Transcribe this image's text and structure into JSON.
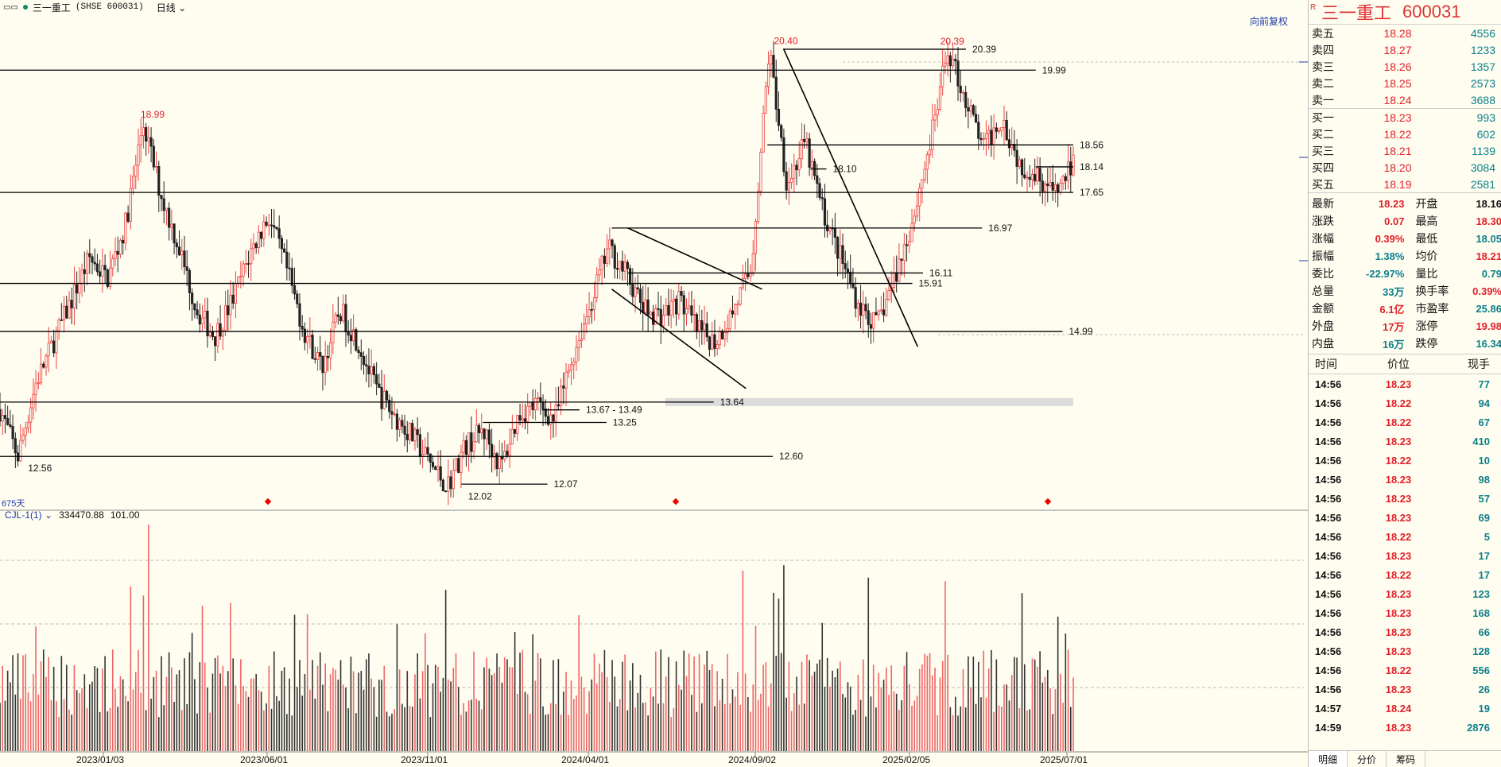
{
  "header": {
    "stock_name": "三一重工",
    "stock_code": "(SHSE 600031)",
    "period": "日线",
    "restore": "向前复权"
  },
  "panel": {
    "r_mark": "R",
    "name": "三一重工",
    "code": "600031",
    "asks": [
      {
        "label": "卖五",
        "price": "18.28",
        "vol": "4556"
      },
      {
        "label": "卖四",
        "price": "18.27",
        "vol": "1233"
      },
      {
        "label": "卖三",
        "price": "18.26",
        "vol": "1357"
      },
      {
        "label": "卖二",
        "price": "18.25",
        "vol": "2573"
      },
      {
        "label": "卖一",
        "price": "18.24",
        "vol": "3688"
      }
    ],
    "bids": [
      {
        "label": "买一",
        "price": "18.23",
        "vol": "993"
      },
      {
        "label": "买二",
        "price": "18.22",
        "vol": "602"
      },
      {
        "label": "买三",
        "price": "18.21",
        "vol": "1139"
      },
      {
        "label": "买四",
        "price": "18.20",
        "vol": "3084"
      },
      {
        "label": "买五",
        "price": "18.19",
        "vol": "2581"
      }
    ],
    "stats": [
      {
        "k": "最新",
        "v": "18.23",
        "vc": "red",
        "k2": "开盘",
        "v2": "18.16",
        "v2c": "blk"
      },
      {
        "k": "涨跌",
        "v": "0.07",
        "vc": "red",
        "k2": "最高",
        "v2": "18.30",
        "v2c": "red"
      },
      {
        "k": "涨幅",
        "v": "0.39%",
        "vc": "red",
        "k2": "最低",
        "v2": "18.05",
        "v2c": "green"
      },
      {
        "k": "振幅",
        "v": "1.38%",
        "vc": "green",
        "k2": "均价",
        "v2": "18.21",
        "v2c": "red"
      },
      {
        "k": "委比",
        "v": "-22.97%",
        "vc": "green",
        "k2": "量比",
        "v2": "0.79",
        "v2c": "green"
      },
      {
        "k": "总量",
        "v": "33万",
        "vc": "green",
        "k2": "换手率",
        "v2": "0.39%",
        "v2c": "red"
      },
      {
        "k": "金额",
        "v": "6.1亿",
        "vc": "red",
        "k2": "市盈率",
        "v2": "25.86",
        "v2c": "green"
      },
      {
        "k": "外盘",
        "v": "17万",
        "vc": "red",
        "k2": "涨停",
        "v2": "19.98",
        "v2c": "red"
      },
      {
        "k": "内盘",
        "v": "16万",
        "vc": "green",
        "k2": "跌停",
        "v2": "16.34",
        "v2c": "green"
      }
    ],
    "tick_header": {
      "time": "时间",
      "price": "价位",
      "vol": "现手"
    },
    "ticks": [
      {
        "t": "14:56",
        "p": "18.23",
        "v": "77",
        "pc": "red"
      },
      {
        "t": "14:56",
        "p": "18.22",
        "v": "94",
        "pc": "red"
      },
      {
        "t": "14:56",
        "p": "18.22",
        "v": "67",
        "pc": "red"
      },
      {
        "t": "14:56",
        "p": "18.23",
        "v": "410",
        "pc": "red"
      },
      {
        "t": "14:56",
        "p": "18.22",
        "v": "10",
        "pc": "red"
      },
      {
        "t": "14:56",
        "p": "18.23",
        "v": "98",
        "pc": "red"
      },
      {
        "t": "14:56",
        "p": "18.23",
        "v": "57",
        "pc": "red"
      },
      {
        "t": "14:56",
        "p": "18.23",
        "v": "69",
        "pc": "red"
      },
      {
        "t": "14:56",
        "p": "18.22",
        "v": "5",
        "pc": "red"
      },
      {
        "t": "14:56",
        "p": "18.23",
        "v": "17",
        "pc": "red"
      },
      {
        "t": "14:56",
        "p": "18.22",
        "v": "17",
        "pc": "red"
      },
      {
        "t": "14:56",
        "p": "18.23",
        "v": "123",
        "pc": "red"
      },
      {
        "t": "14:56",
        "p": "18.23",
        "v": "168",
        "pc": "red"
      },
      {
        "t": "14:56",
        "p": "18.23",
        "v": "66",
        "pc": "red"
      },
      {
        "t": "14:56",
        "p": "18.23",
        "v": "128",
        "pc": "red"
      },
      {
        "t": "14:56",
        "p": "18.22",
        "v": "556",
        "pc": "red"
      },
      {
        "t": "14:56",
        "p": "18.23",
        "v": "26",
        "pc": "red"
      },
      {
        "t": "14:57",
        "p": "18.24",
        "v": "19",
        "pc": "red"
      },
      {
        "t": "14:59",
        "p": "18.23",
        "v": "2876",
        "pc": "red"
      }
    ],
    "tabs": [
      "明细",
      "分价",
      "筹码"
    ]
  },
  "indicator": {
    "name": "CJL-1(1)",
    "v1": "334470.88",
    "v2": "101.00"
  },
  "days_label": "675天",
  "chart_data": [
    {
      "type": "candlestick",
      "x_dates": [
        "2023/01/03",
        "2023/06/01",
        "2023/11/01",
        "2024/04/01",
        "2024/09/02",
        "2025/02/05",
        "2025/07/01"
      ],
      "ylim": [
        11.6,
        20.8
      ],
      "key_points": [
        {
          "label": "18.99",
          "price": 18.99,
          "date_frac": 0.14
        },
        {
          "label": "12.56",
          "price": 12.56,
          "date_frac": 0.035
        },
        {
          "label": "12.02",
          "price": 12.02,
          "date_frac": 0.445
        },
        {
          "label": "20.40",
          "price": 20.4,
          "date_frac": 0.73
        },
        {
          "label": "20.39",
          "price": 20.39,
          "date_frac": 0.885
        }
      ],
      "price_path": [
        13.5,
        12.6,
        14.0,
        14.8,
        15.6,
        16.4,
        16.0,
        17.0,
        18.99,
        17.6,
        16.6,
        15.4,
        14.9,
        15.6,
        16.5,
        17.2,
        16.2,
        15.0,
        14.3,
        15.4,
        14.8,
        13.9,
        13.4,
        13.0,
        12.5,
        12.02,
        12.8,
        13.1,
        12.4,
        13.4,
        13.6,
        13.3,
        14.5,
        15.5,
        16.6,
        16.1,
        15.4,
        15.3,
        15.6,
        15.0,
        14.8,
        15.4,
        16.2,
        20.4,
        17.8,
        18.6,
        17.3,
        16.4,
        15.5,
        15.1,
        16.0,
        17.1,
        18.6,
        20.39,
        19.4,
        18.5,
        19.1,
        18.2,
        18.0,
        17.6,
        18.23
      ],
      "horizontal_levels": [
        {
          "label": "20.39",
          "price": 20.39,
          "from": 0.73,
          "to": 0.9
        },
        {
          "label": "19.99",
          "price": 19.99,
          "from": 0.0,
          "to": 0.965
        },
        {
          "label": "18.56",
          "price": 18.56,
          "from": 0.715,
          "to": 1.0
        },
        {
          "label": "18.14",
          "price": 18.14,
          "from": 0.965,
          "to": 1.0
        },
        {
          "label": "18.10",
          "price": 18.1,
          "from": 0.755,
          "to": 0.77
        },
        {
          "label": "17.65",
          "price": 17.65,
          "from": 0.0,
          "to": 1.0
        },
        {
          "label": "16.97",
          "price": 16.97,
          "from": 0.57,
          "to": 0.915
        },
        {
          "label": "16.11",
          "price": 16.11,
          "from": 0.585,
          "to": 0.86
        },
        {
          "label": "15.91",
          "price": 15.91,
          "from": 0.0,
          "to": 0.85
        },
        {
          "label": "14.99",
          "price": 14.99,
          "from": 0.0,
          "to": 0.99
        },
        {
          "label": "13.64",
          "price": 13.64,
          "from": 0.0,
          "to": 0.665
        },
        {
          "label": "13.67 - 13.49",
          "price": 13.49,
          "from": 0.505,
          "to": 0.54
        },
        {
          "label": "13.25",
          "price": 13.25,
          "from": 0.45,
          "to": 0.565
        },
        {
          "label": "12.60",
          "price": 12.6,
          "from": 0.0,
          "to": 0.72
        },
        {
          "label": "12.07",
          "price": 12.07,
          "from": 0.43,
          "to": 0.51
        }
      ],
      "trend_lines": [
        {
          "from": [
            0.73,
            20.4
          ],
          "to": [
            0.855,
            14.7
          ]
        },
        {
          "from": [
            0.585,
            16.97
          ],
          "to": [
            0.71,
            15.8
          ]
        },
        {
          "from": [
            0.57,
            15.8
          ],
          "to": [
            0.695,
            13.9
          ]
        }
      ]
    },
    {
      "type": "bar",
      "name": "CJL-1(1)",
      "title": "",
      "values_desc": "daily volume"
    }
  ]
}
